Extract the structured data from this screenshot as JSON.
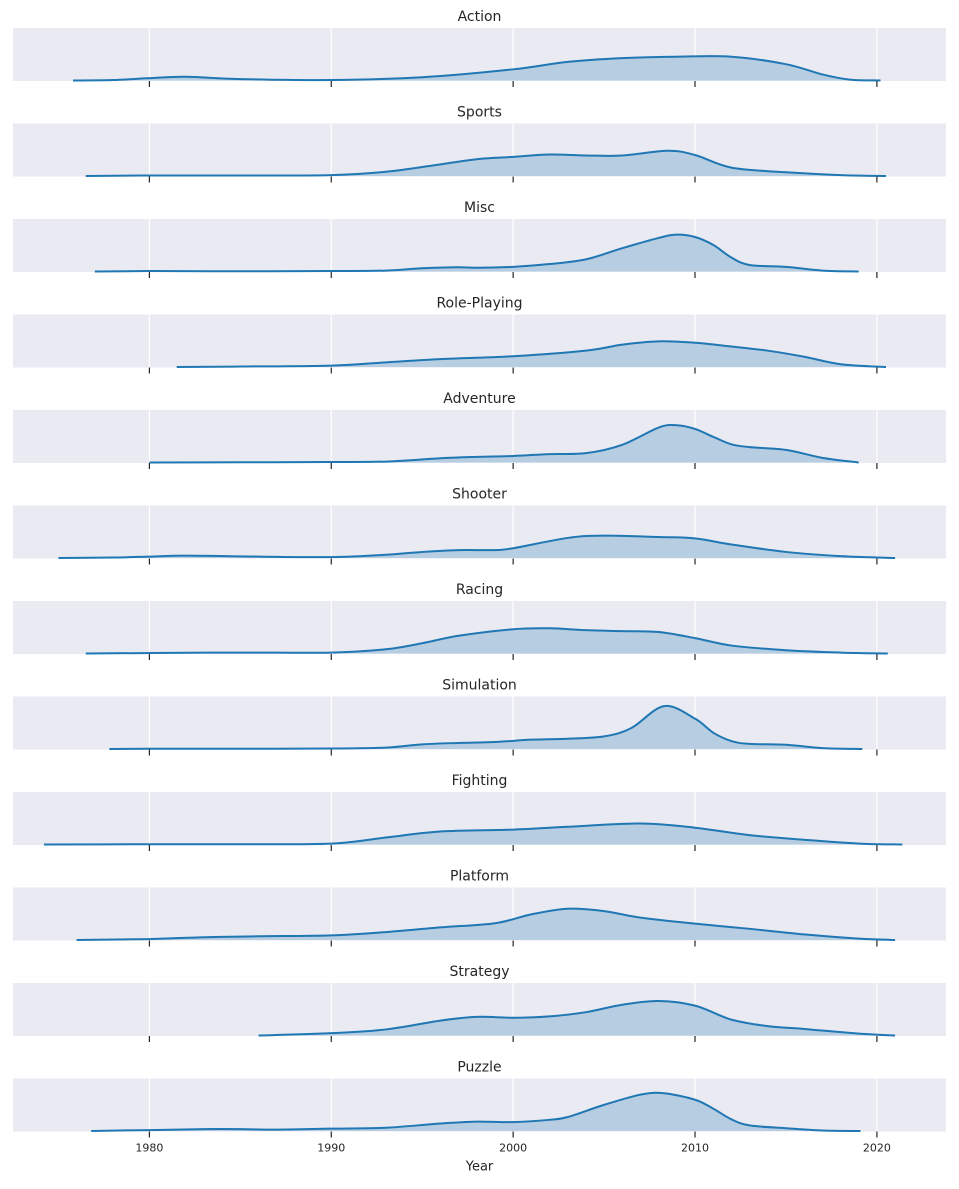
{
  "colors": {
    "line": "#1f77b4",
    "fill": "#b7cde2",
    "panel_bg": "#eaeaf2",
    "grid": "#ffffff",
    "text": "#262626"
  },
  "chart_data": {
    "type": "area",
    "subtype": "stacked-kde-panels",
    "xlabel": "Year",
    "xlim": [
      1972.5,
      2023.8
    ],
    "xticks": [
      1980,
      1990,
      2000,
      2010,
      2020
    ],
    "grid": true,
    "series": [
      {
        "name": "Action",
        "x": [
          1975.8,
          1978,
          1980,
          1982,
          1985,
          1990,
          1995,
          2000,
          2003,
          2006,
          2009,
          2012,
          2015,
          2017,
          2018.5,
          2020.2
        ],
        "y": [
          0,
          0.01,
          0.05,
          0.08,
          0.03,
          0.01,
          0.07,
          0.24,
          0.4,
          0.48,
          0.51,
          0.51,
          0.35,
          0.13,
          0.02,
          0
        ]
      },
      {
        "name": "Sports",
        "x": [
          1976.5,
          1980,
          1985,
          1990,
          1993,
          1996,
          1998,
          2000,
          2002,
          2004,
          2006,
          2008.5,
          2010,
          2012,
          2015,
          2018,
          2020.5
        ],
        "y": [
          0,
          0.01,
          0.01,
          0.02,
          0.09,
          0.25,
          0.36,
          0.41,
          0.46,
          0.44,
          0.44,
          0.54,
          0.45,
          0.18,
          0.08,
          0.02,
          0
        ]
      },
      {
        "name": "Misc",
        "x": [
          1977,
          1980,
          1985,
          1990,
          1993,
          1995,
          1997,
          1998,
          2000,
          2002,
          2004,
          2006,
          2008,
          2009,
          2010,
          2011,
          2012,
          2013,
          2015,
          2017,
          2019
        ],
        "y": [
          0,
          0.01,
          0.005,
          0.01,
          0.02,
          0.07,
          0.09,
          0.08,
          0.1,
          0.16,
          0.26,
          0.5,
          0.72,
          0.79,
          0.74,
          0.57,
          0.3,
          0.14,
          0.1,
          0.02,
          0
        ]
      },
      {
        "name": "Role-Playing",
        "x": [
          1981.5,
          1985,
          1990,
          1993,
          1996,
          2000,
          2004,
          2006,
          2008,
          2010,
          2012,
          2014,
          2016,
          2018,
          2020.5
        ],
        "y": [
          0,
          0.01,
          0.03,
          0.1,
          0.17,
          0.23,
          0.35,
          0.48,
          0.55,
          0.52,
          0.44,
          0.35,
          0.22,
          0.06,
          0
        ]
      },
      {
        "name": "Adventure",
        "x": [
          1980,
          1985,
          1990,
          1993,
          1996,
          1998,
          2000,
          2002,
          2004,
          2006,
          2008,
          2009,
          2010,
          2011,
          2012,
          2013,
          2015,
          2017,
          2019
        ],
        "y": [
          0,
          0.005,
          0.01,
          0.02,
          0.09,
          0.12,
          0.14,
          0.18,
          0.2,
          0.38,
          0.75,
          0.8,
          0.72,
          0.55,
          0.39,
          0.33,
          0.27,
          0.1,
          0
        ]
      },
      {
        "name": "Shooter",
        "x": [
          1975,
          1978,
          1980,
          1982,
          1986,
          1990,
          1993,
          1995,
          1997,
          1999,
          2000,
          2003,
          2005,
          2008,
          2010,
          2012,
          2015,
          2018,
          2021
        ],
        "y": [
          0,
          0.01,
          0.03,
          0.05,
          0.03,
          0.02,
          0.07,
          0.13,
          0.17,
          0.17,
          0.21,
          0.43,
          0.48,
          0.45,
          0.42,
          0.29,
          0.13,
          0.04,
          0
        ]
      },
      {
        "name": "Racing",
        "x": [
          1976.5,
          1980,
          1985,
          1990,
          1993,
          1995,
          1997,
          2000,
          2002,
          2004,
          2006,
          2008,
          2010,
          2012,
          2015,
          2018,
          2020.6
        ],
        "y": [
          0,
          0.01,
          0.02,
          0.02,
          0.09,
          0.22,
          0.38,
          0.52,
          0.54,
          0.5,
          0.48,
          0.46,
          0.33,
          0.17,
          0.07,
          0.02,
          0
        ]
      },
      {
        "name": "Simulation",
        "x": [
          1977.8,
          1980,
          1985,
          1990,
          1993,
          1995,
          1997,
          1999,
          2001,
          2003,
          2005,
          2006.5,
          2008.3,
          2010,
          2011,
          2012,
          2013,
          2015,
          2017,
          2019.2
        ],
        "y": [
          0,
          0.005,
          0.005,
          0.01,
          0.03,
          0.1,
          0.13,
          0.15,
          0.2,
          0.22,
          0.27,
          0.45,
          0.92,
          0.65,
          0.35,
          0.17,
          0.11,
          0.09,
          0.02,
          0
        ]
      },
      {
        "name": "Fighting",
        "x": [
          1974.2,
          1980,
          1985,
          1990,
          1993,
          1996,
          2000,
          2003,
          2007,
          2010,
          2013,
          2016,
          2019,
          2021.4
        ],
        "y": [
          0,
          0.005,
          0.005,
          0.02,
          0.15,
          0.28,
          0.32,
          0.38,
          0.45,
          0.36,
          0.2,
          0.1,
          0.02,
          0
        ]
      },
      {
        "name": "Platform",
        "x": [
          1976,
          1980,
          1983,
          1986,
          1990,
          1993,
          1996,
          1999,
          2001,
          2003,
          2005,
          2007,
          2010,
          2013,
          2016,
          2019,
          2021
        ],
        "y": [
          0,
          0.02,
          0.06,
          0.08,
          0.1,
          0.17,
          0.27,
          0.36,
          0.55,
          0.67,
          0.62,
          0.48,
          0.35,
          0.24,
          0.12,
          0.03,
          0
        ]
      },
      {
        "name": "Strategy",
        "x": [
          1986,
          1990,
          1993,
          1996,
          1998,
          2000,
          2002,
          2004,
          2006,
          2008,
          2010,
          2012,
          2014,
          2016,
          2019,
          2021
        ],
        "y": [
          0,
          0.05,
          0.13,
          0.32,
          0.4,
          0.38,
          0.41,
          0.5,
          0.66,
          0.74,
          0.64,
          0.34,
          0.2,
          0.14,
          0.04,
          0
        ]
      },
      {
        "name": "Puzzle",
        "x": [
          1976.8,
          1980,
          1983,
          1985,
          1987,
          1990,
          1993,
          1996,
          1998,
          2000,
          2002,
          2003,
          2005,
          2007,
          2008.3,
          2010,
          2011,
          2012,
          2013,
          2015,
          2017,
          2019.1
        ],
        "y": [
          0,
          0.02,
          0.04,
          0.04,
          0.03,
          0.05,
          0.07,
          0.16,
          0.2,
          0.19,
          0.24,
          0.3,
          0.56,
          0.78,
          0.81,
          0.67,
          0.48,
          0.25,
          0.12,
          0.06,
          0.01,
          0
        ]
      }
    ]
  }
}
